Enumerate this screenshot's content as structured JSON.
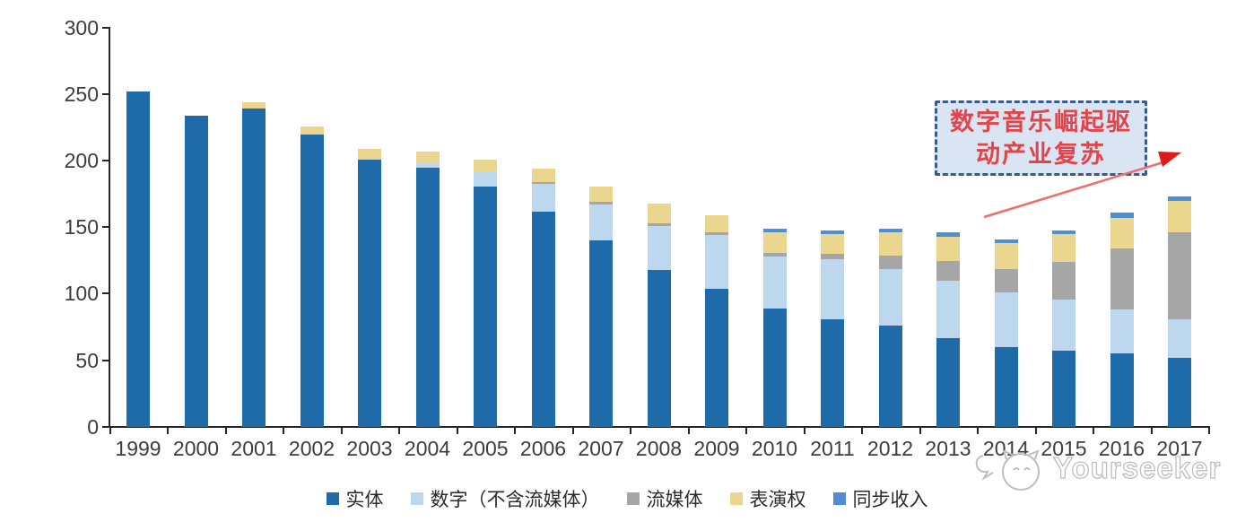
{
  "chart_data": {
    "type": "bar",
    "stacked": true,
    "title": "",
    "xlabel": "",
    "ylabel": "",
    "categories": [
      "1999",
      "2000",
      "2001",
      "2002",
      "2003",
      "2004",
      "2005",
      "2006",
      "2007",
      "2008",
      "2009",
      "2010",
      "2011",
      "2012",
      "2013",
      "2014",
      "2015",
      "2016",
      "2017"
    ],
    "series": [
      {
        "name": "实体",
        "slug": "physical",
        "color": "#1F6BA9",
        "values": [
          252,
          234,
          239,
          220,
          201,
          195,
          181,
          162,
          140,
          118,
          104,
          89,
          81,
          76,
          67,
          60,
          57,
          55,
          52
        ]
      },
      {
        "name": "数字（不含流媒体）",
        "slug": "digital-excl-streaming",
        "color": "#BDD7EE",
        "values": [
          0,
          0,
          0,
          0,
          0,
          3,
          11,
          21,
          27,
          33,
          40,
          39,
          45,
          43,
          43,
          41,
          39,
          33,
          29
        ]
      },
      {
        "name": "流媒体",
        "slug": "streaming",
        "color": "#A6A6A6",
        "values": [
          0,
          0,
          0,
          0,
          0,
          0,
          0,
          1,
          2,
          2,
          2,
          3,
          4,
          10,
          15,
          18,
          28,
          46,
          65
        ]
      },
      {
        "name": "表演权",
        "slug": "performance-rights",
        "color": "#EBD68F",
        "values": [
          0,
          0,
          5,
          6,
          8,
          9,
          9,
          10,
          12,
          15,
          13,
          15,
          15,
          17,
          18,
          19,
          21,
          23,
          24
        ]
      },
      {
        "name": "同步收入",
        "slug": "sync-revenue",
        "color": "#4E8FD0",
        "values": [
          0,
          0,
          0,
          0,
          0,
          0,
          0,
          0,
          0,
          0,
          0,
          3,
          3,
          3,
          3,
          3,
          3,
          4,
          3
        ]
      }
    ],
    "totals": [
      252,
      234,
      244,
      226,
      209,
      207,
      201,
      194,
      181,
      168,
      159,
      149,
      148,
      149,
      146,
      141,
      148,
      161,
      173
    ],
    "ylim": [
      0,
      300
    ],
    "yticks": [
      0,
      50,
      100,
      150,
      200,
      250,
      300
    ],
    "grid": false,
    "legend_position": "bottom"
  },
  "annotation": {
    "line1": "数字音乐崛起驱",
    "line2": "动产业复苏",
    "text_color": "#E0454B",
    "box_fill": "#D9E5F3",
    "box_border": "#3A5A8C",
    "arrow_color": "#F16B6B",
    "arrowhead_color": "#E01A1A"
  },
  "watermark": {
    "text": "Yourseeker",
    "logo": "cat-with-headphones"
  },
  "axis": {
    "line_color": "#262626",
    "label_color": "#3d3d3d"
  }
}
